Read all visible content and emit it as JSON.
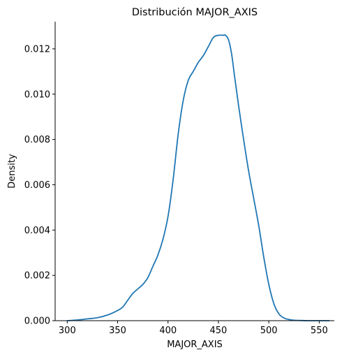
{
  "chart_data": {
    "type": "line",
    "title": "Distribución MAJOR_AXIS",
    "xlabel": "MAJOR_AXIS",
    "ylabel": "Density",
    "xlim": [
      288,
      565
    ],
    "ylim": [
      0,
      0.0132
    ],
    "x_ticks": [
      300,
      350,
      400,
      450,
      500,
      550
    ],
    "x_tick_labels": [
      "300",
      "350",
      "400",
      "450",
      "500",
      "550"
    ],
    "y_ticks": [
      0,
      0.002,
      0.004,
      0.006,
      0.008,
      0.01,
      0.012
    ],
    "y_tick_labels": [
      "0.000",
      "0.002",
      "0.004",
      "0.006",
      "0.008",
      "0.010",
      "0.012"
    ],
    "grid": false,
    "line_color": "#1f77b4",
    "series": [
      {
        "x": [
          300,
          310,
          320,
          330,
          340,
          350,
          355,
          360,
          365,
          370,
          375,
          380,
          385,
          390,
          395,
          400,
          405,
          410,
          415,
          420,
          425,
          430,
          435,
          440,
          445,
          450,
          455,
          457,
          460,
          463,
          466,
          470,
          475,
          480,
          485,
          490,
          495,
          500,
          505,
          510,
          515,
          520,
          525,
          530,
          540,
          550,
          560
        ],
        "values": [
          0.0,
          3e-05,
          8e-05,
          0.00013,
          0.00025,
          0.00045,
          0.0006,
          0.0009,
          0.0012,
          0.0014,
          0.0016,
          0.0019,
          0.0024,
          0.0029,
          0.0036,
          0.0046,
          0.0062,
          0.0082,
          0.0097,
          0.0106,
          0.011,
          0.0114,
          0.0117,
          0.0121,
          0.0125,
          0.0126,
          0.0126,
          0.0126,
          0.0124,
          0.0118,
          0.0108,
          0.0095,
          0.008,
          0.0066,
          0.0054,
          0.0042,
          0.0028,
          0.0016,
          0.00075,
          0.0003,
          0.00012,
          5e-05,
          2e-05,
          1e-05,
          0.0,
          0.0,
          0.0
        ]
      }
    ]
  }
}
